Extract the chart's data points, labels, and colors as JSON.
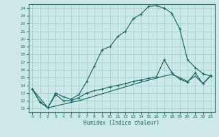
{
  "xlabel": "Humidex (Indice chaleur)",
  "xlim": [
    -0.5,
    23.5
  ],
  "ylim": [
    10.5,
    24.5
  ],
  "xticks": [
    0,
    1,
    2,
    3,
    4,
    5,
    6,
    7,
    8,
    9,
    10,
    11,
    12,
    13,
    14,
    15,
    16,
    17,
    18,
    19,
    20,
    21,
    22,
    23
  ],
  "yticks": [
    11,
    12,
    13,
    14,
    15,
    16,
    17,
    18,
    19,
    20,
    21,
    22,
    23,
    24
  ],
  "bg_color": "#cde8e8",
  "grid_color": "#9dcece",
  "line_color": "#1f6b6b",
  "upper_line": [
    [
      0,
      13.5
    ],
    [
      1,
      11.8
    ],
    [
      2,
      11.1
    ],
    [
      3,
      13.0
    ],
    [
      4,
      12.5
    ],
    [
      5,
      12.2
    ],
    [
      6,
      12.8
    ],
    [
      7,
      14.5
    ],
    [
      8,
      16.5
    ],
    [
      9,
      18.6
    ],
    [
      10,
      19.0
    ],
    [
      11,
      20.3
    ],
    [
      12,
      21.0
    ],
    [
      13,
      22.6
    ],
    [
      14,
      23.2
    ],
    [
      15,
      24.2
    ],
    [
      16,
      24.3
    ],
    [
      17,
      24.0
    ],
    [
      18,
      23.3
    ],
    [
      19,
      21.3
    ],
    [
      20,
      17.3
    ],
    [
      21,
      16.3
    ],
    [
      22,
      15.5
    ],
    [
      23,
      15.2
    ]
  ],
  "mid_line": [
    [
      0,
      13.5
    ],
    [
      1,
      11.8
    ],
    [
      2,
      11.1
    ],
    [
      3,
      12.8
    ],
    [
      4,
      12.0
    ],
    [
      5,
      12.0
    ],
    [
      6,
      12.4
    ],
    [
      7,
      13.0
    ],
    [
      8,
      13.3
    ],
    [
      9,
      13.5
    ],
    [
      10,
      13.8
    ],
    [
      11,
      14.0
    ],
    [
      12,
      14.2
    ],
    [
      13,
      14.5
    ],
    [
      14,
      14.7
    ],
    [
      15,
      14.9
    ],
    [
      16,
      15.1
    ],
    [
      17,
      17.3
    ],
    [
      18,
      15.6
    ],
    [
      19,
      14.8
    ],
    [
      20,
      14.4
    ],
    [
      21,
      15.6
    ],
    [
      22,
      14.2
    ],
    [
      23,
      15.3
    ]
  ],
  "lower_line": [
    [
      0,
      13.5
    ],
    [
      2,
      11.1
    ],
    [
      6,
      12.0
    ],
    [
      10,
      13.2
    ],
    [
      14,
      14.4
    ],
    [
      17,
      15.2
    ],
    [
      18,
      15.4
    ],
    [
      19,
      15.0
    ],
    [
      20,
      14.5
    ],
    [
      21,
      15.2
    ],
    [
      22,
      14.2
    ],
    [
      23,
      15.2
    ]
  ]
}
